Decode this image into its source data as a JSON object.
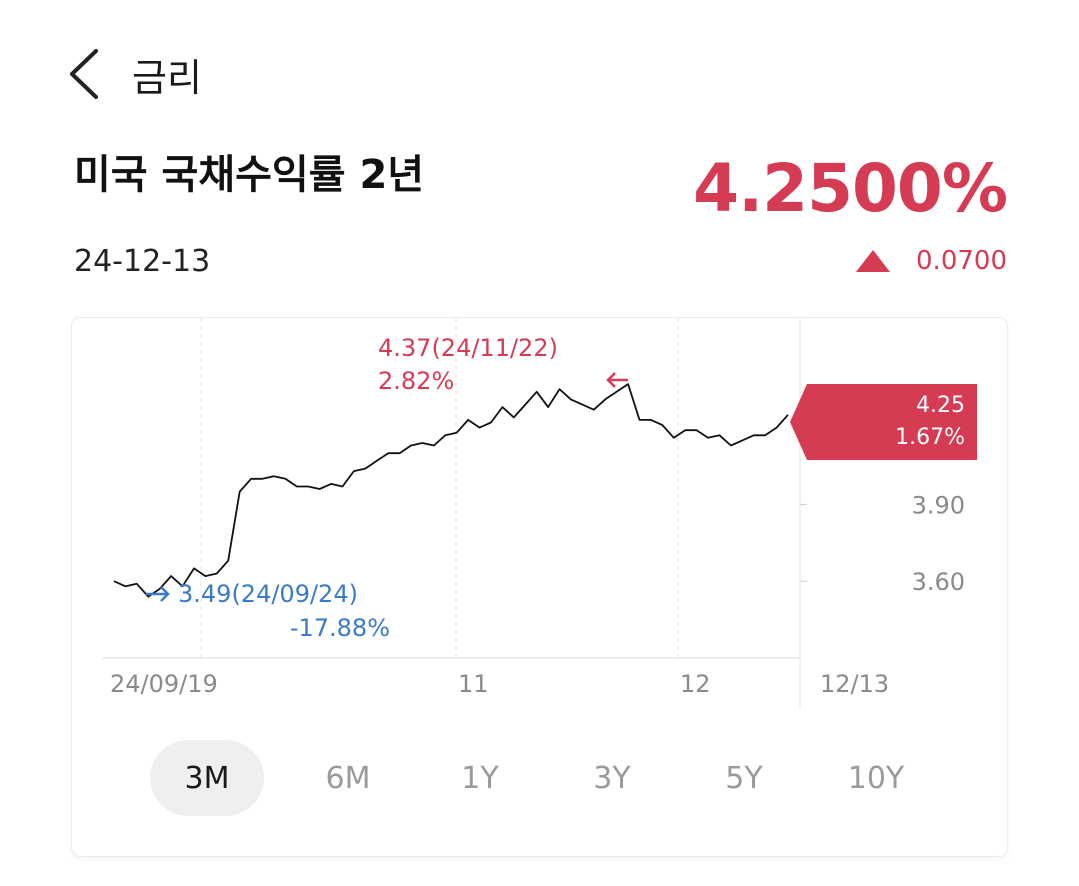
{
  "header": {
    "title": "금리"
  },
  "instrument": {
    "name": "미국 국채수익률 2년",
    "price": "4.2500%",
    "date": "24-12-13",
    "change": "0.0700",
    "accent_color": "#d63b54",
    "low_color": "#3b7ac4"
  },
  "chart_data": {
    "type": "line",
    "x_tick_labels": [
      "24/09/19",
      "11",
      "12",
      "12/13"
    ],
    "y_tick_labels": [
      "3.90",
      "3.60"
    ],
    "ylim": [
      3.3,
      4.55
    ],
    "series": [
      {
        "values": [
          3.6,
          3.58,
          3.59,
          3.54,
          3.57,
          3.62,
          3.58,
          3.65,
          3.62,
          3.63,
          3.68,
          3.95,
          4.0,
          4.0,
          4.01,
          4.0,
          3.97,
          3.97,
          3.96,
          3.98,
          3.97,
          4.03,
          4.04,
          4.07,
          4.1,
          4.1,
          4.13,
          4.14,
          4.13,
          4.17,
          4.18,
          4.23,
          4.2,
          4.22,
          4.28,
          4.24,
          4.29,
          4.34,
          4.28,
          4.35,
          4.31,
          4.29,
          4.27,
          4.31,
          4.34,
          4.37,
          4.23,
          4.23,
          4.21,
          4.16,
          4.19,
          4.19,
          4.16,
          4.17,
          4.13,
          4.15,
          4.17,
          4.17,
          4.2,
          4.25
        ]
      }
    ],
    "current": {
      "value": "4.25",
      "pct": "1.67%"
    },
    "high": {
      "label": "4.37(24/11/22)",
      "pct": "2.82%"
    },
    "low": {
      "label": "3.49(24/09/24)",
      "pct": "-17.88%"
    }
  },
  "range_tabs": [
    "3M",
    "6M",
    "1Y",
    "3Y",
    "5Y",
    "10Y"
  ]
}
